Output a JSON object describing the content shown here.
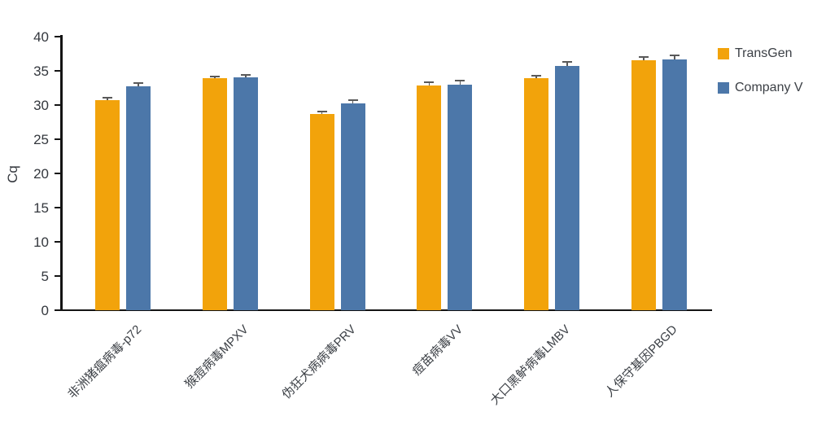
{
  "chart_data": {
    "type": "bar",
    "title": "",
    "xlabel": "",
    "ylabel": "Cq",
    "ylim": [
      0,
      40
    ],
    "y_ticks": [
      0,
      5,
      10,
      15,
      20,
      25,
      30,
      35,
      40
    ],
    "grid": false,
    "legend_position": "right",
    "error_bars": true,
    "error_bar_color": "#595959",
    "categories": [
      "非洲猪瘟病毒-p72",
      "猴痘病毒MPXV",
      "伪狂犬病病毒PRV",
      "痘苗病毒VV",
      "大口黑鲈病毒LMBV",
      "人保守基因PBGD"
    ],
    "series": [
      {
        "name": "TransGen",
        "color": "#F2A30B",
        "values": [
          30.7,
          33.9,
          28.7,
          32.9,
          33.9,
          36.6
        ],
        "errors": [
          0.2,
          0.2,
          0.2,
          0.3,
          0.3,
          0.3
        ]
      },
      {
        "name": "Company V",
        "color": "#4C77A9",
        "values": [
          32.7,
          34.0,
          30.2,
          33.0,
          35.7,
          36.7
        ],
        "errors": [
          0.4,
          0.3,
          0.4,
          0.5,
          0.5,
          0.4
        ]
      }
    ]
  }
}
